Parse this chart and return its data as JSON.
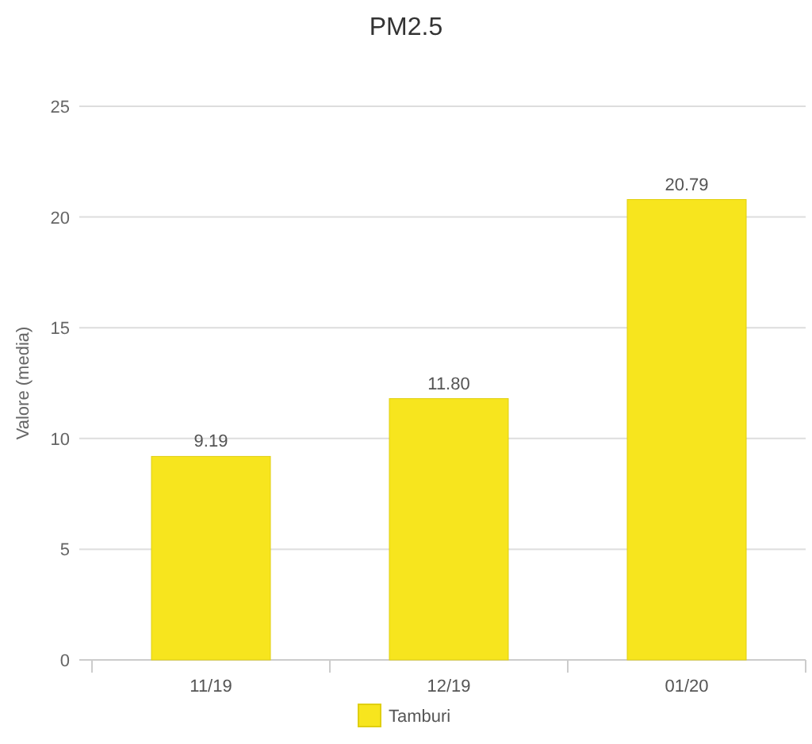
{
  "chart_data": {
    "type": "bar",
    "title": "PM2.5",
    "ylabel": "Valore (media)",
    "categories": [
      "11/19",
      "12/19",
      "01/20"
    ],
    "series": [
      {
        "name": "Tamburi",
        "color": "#f7e51e",
        "values": [
          9.19,
          11.8,
          20.79
        ],
        "value_labels": [
          "9.19",
          "11.80",
          "20.79"
        ]
      }
    ],
    "ylim": [
      0,
      25
    ],
    "yticks": [
      0,
      5,
      10,
      15,
      20,
      25
    ],
    "grid": "y",
    "legend": "bottom"
  }
}
